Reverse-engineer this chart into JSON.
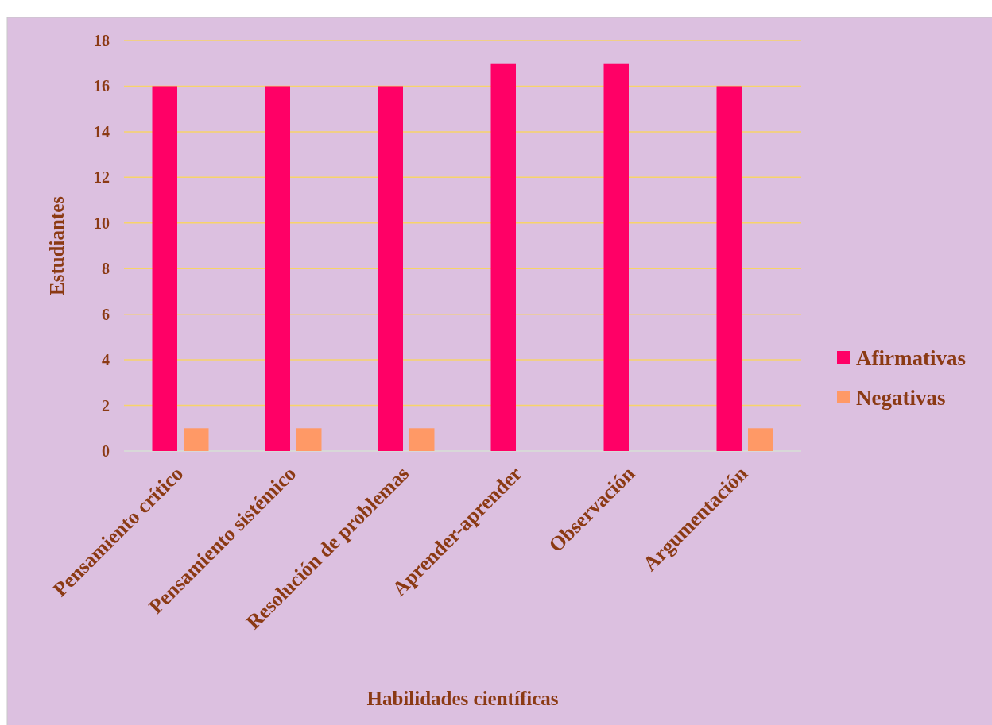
{
  "chart_data": {
    "type": "bar",
    "xlabel": "Habilidades científicas",
    "ylabel": "Estudiantes",
    "categories": [
      "Pensamiento crítico",
      "Pensamiento sistémico",
      "Resolución de problemas",
      "Aprender-aprender",
      "Observación",
      "Argumentación"
    ],
    "series": [
      {
        "name": "Afirmativas",
        "color": "#ff0066",
        "values": [
          16,
          16,
          16,
          17,
          17,
          16
        ]
      },
      {
        "name": "Negativas",
        "color": "#ff9966",
        "values": [
          1,
          1,
          1,
          0,
          0,
          1
        ]
      }
    ],
    "ylim": [
      0,
      18
    ],
    "yticks": [
      0,
      2,
      4,
      6,
      8,
      10,
      12,
      14,
      16,
      18
    ],
    "grid": "y",
    "legend": "right"
  }
}
